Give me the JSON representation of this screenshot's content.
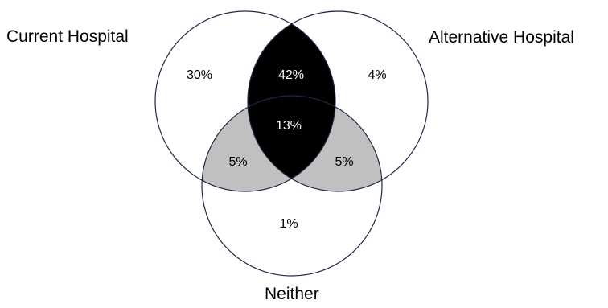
{
  "sets": {
    "current_hospital": "Current Hospital",
    "alternative_hospital": "Alternative Hospital",
    "neither": "Neither"
  },
  "regions": {
    "current_only": "30%",
    "current_and_alternative": "42%",
    "alternative_only": "4%",
    "all_three": "13%",
    "current_and_neither": "5%",
    "alternative_and_neither": "5%",
    "neither_only": "1%"
  },
  "colors": {
    "circle_stroke": "#1f2a44",
    "current_and_alternative_fill": "#000000",
    "neither_overlap_fill": "#c0c0c0",
    "dark_region_text": "#ffffff",
    "light_region_text": "#000000"
  }
}
